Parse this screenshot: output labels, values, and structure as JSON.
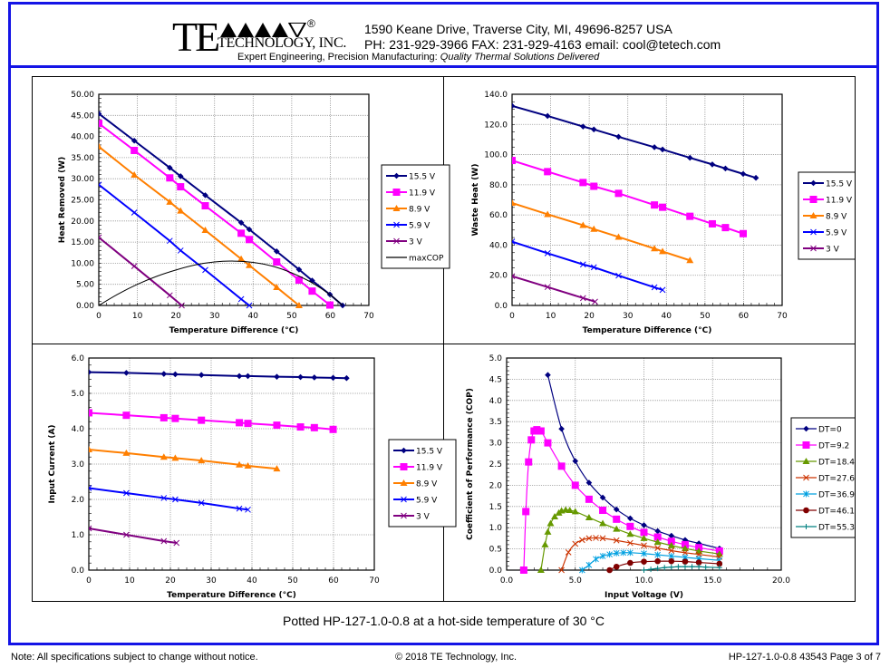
{
  "header": {
    "logo_te": "TE",
    "logo_reg": "®",
    "logo_tech": "TECHNOLOGY, INC.",
    "address_line": "1590 Keane Drive, Traverse City, MI, 49696-8257 USA",
    "contact_line": "PH: 231-929-3966  FAX: 231-929-4163  email: cool@tetech.com",
    "tagline_plain": "Expert Engineering, Precision Manufacturing:",
    "tagline_italic": "Quality Thermal Solutions Delivered"
  },
  "caption": "Potted HP-127-1.0-0.8 at a hot-side temperature of 30 °C",
  "footer": {
    "note": "Note: All specifications subject to change without notice.",
    "copyright": "© 2018 TE Technology, Inc.",
    "page": "HP-127-1.0-0.8 43543 Page 3 of 7"
  },
  "colors": {
    "border": "#1414e6",
    "v15_5": "#000080",
    "v11_9": "#ff00ff",
    "v8_9": "#ff7f00",
    "v5_9": "#0000ff",
    "v3": "#800080",
    "maxcop": "#000000",
    "dt0": "#000080",
    "dt9_2": "#ff00ff",
    "dt18_4": "#669900",
    "dt27_6": "#cc3300",
    "dt36_9": "#00a0e0",
    "dt46_1": "#800000",
    "dt55_3": "#008080"
  },
  "chart_data": [
    {
      "id": "heat-removed",
      "type": "line",
      "xlabel": "Temperature Difference (°C)",
      "ylabel": "Heat Removed (W)",
      "xlim": [
        0,
        70
      ],
      "ylim": [
        0,
        50
      ],
      "xticks": [
        "0",
        "10",
        "20",
        "30",
        "40",
        "50",
        "60",
        "70"
      ],
      "yticks": [
        "0.00",
        "5.00",
        "10.00",
        "15.00",
        "20.00",
        "25.00",
        "30.00",
        "35.00",
        "40.00",
        "45.00",
        "50.00"
      ],
      "grid": true,
      "legend": "right",
      "series": [
        {
          "name": "15.5 V",
          "color": "#000080",
          "marker": "diamond",
          "x": [
            0,
            9.2,
            18.4,
            21.2,
            27.6,
            36.9,
            39.0,
            46.1,
            51.9,
            55.3,
            59.9,
            63.2
          ],
          "y": [
            45.4,
            39.0,
            32.6,
            30.6,
            26.1,
            19.6,
            18.0,
            12.8,
            8.5,
            5.9,
            2.6,
            0
          ]
        },
        {
          "name": "11.9 V",
          "color": "#ff00ff",
          "marker": "square",
          "x": [
            0,
            9.2,
            18.4,
            21.2,
            27.6,
            36.9,
            39.0,
            46.1,
            51.9,
            55.3,
            59.9
          ],
          "y": [
            43.1,
            36.7,
            30.2,
            28.1,
            23.6,
            17.1,
            15.6,
            10.3,
            6.0,
            3.4,
            0.1
          ]
        },
        {
          "name": "8.9 V",
          "color": "#ff7f00",
          "marker": "triangle",
          "x": [
            0,
            9.2,
            18.4,
            21.2,
            27.6,
            36.9,
            39.0,
            46.1,
            51.9
          ],
          "y": [
            37.6,
            30.9,
            24.5,
            22.4,
            17.8,
            11.0,
            9.5,
            4.3,
            0
          ]
        },
        {
          "name": "5.9 V",
          "color": "#0000ff",
          "marker": "x",
          "x": [
            0,
            9.2,
            18.4,
            21.2,
            27.6,
            36.9,
            39.0
          ],
          "y": [
            28.6,
            22.0,
            15.3,
            13.0,
            8.4,
            1.5,
            0
          ]
        },
        {
          "name": "3 V",
          "color": "#800080",
          "marker": "x",
          "x": [
            0,
            9.2,
            18.4,
            21.5
          ],
          "y": [
            16.1,
            9.3,
            2.4,
            0
          ]
        },
        {
          "name": "maxCOP",
          "color": "#000000",
          "marker": "none",
          "smooth": true,
          "x": [
            0,
            5,
            10,
            15,
            20,
            25,
            30,
            35,
            40,
            45,
            50,
            55,
            60,
            63.2
          ],
          "y": [
            0,
            2.7,
            5.0,
            6.9,
            8.4,
            9.6,
            10.3,
            10.5,
            10.2,
            9.3,
            7.7,
            5.5,
            2.5,
            0
          ]
        }
      ]
    },
    {
      "id": "waste-heat",
      "type": "line",
      "xlabel": "Temperature Difference (°C)",
      "ylabel": "Waste Heat (W)",
      "xlim": [
        0,
        70
      ],
      "ylim": [
        0,
        140
      ],
      "xticks": [
        "0",
        "10",
        "20",
        "30",
        "40",
        "50",
        "60",
        "70"
      ],
      "yticks": [
        "0.0",
        "20.0",
        "40.0",
        "60.0",
        "80.0",
        "100.0",
        "120.0",
        "140.0"
      ],
      "grid": true,
      "legend": "right",
      "series": [
        {
          "name": "15.5 V",
          "color": "#000080",
          "marker": "diamond",
          "x": [
            0,
            9.2,
            18.4,
            21.2,
            27.6,
            36.9,
            39.0,
            46.1,
            51.9,
            55.3,
            59.9,
            63.2
          ],
          "y": [
            132.3,
            125.6,
            118.6,
            116.7,
            111.8,
            104.9,
            103.4,
            97.9,
            93.5,
            90.8,
            87.2,
            84.6
          ]
        },
        {
          "name": "11.9 V",
          "color": "#ff00ff",
          "marker": "square",
          "x": [
            0,
            9.2,
            18.4,
            21.2,
            27.6,
            36.9,
            39.0,
            46.1,
            51.9,
            55.3,
            59.9
          ],
          "y": [
            96.1,
            88.7,
            81.5,
            79.0,
            74.3,
            66.6,
            65.1,
            59.1,
            54.1,
            51.6,
            47.6
          ]
        },
        {
          "name": "8.9 V",
          "color": "#ff7f00",
          "marker": "triangle",
          "x": [
            0,
            9.2,
            18.4,
            21.2,
            27.6,
            36.9,
            39.0,
            46.1
          ],
          "y": [
            67.9,
            60.4,
            53.2,
            50.6,
            45.4,
            37.7,
            35.8,
            29.9
          ]
        },
        {
          "name": "5.9 V",
          "color": "#0000ff",
          "marker": "x",
          "x": [
            0,
            9.2,
            18.4,
            21.2,
            27.6,
            36.9,
            39.0
          ],
          "y": [
            42.3,
            34.6,
            27.2,
            25.3,
            19.8,
            12.0,
            10.3
          ]
        },
        {
          "name": "3 V",
          "color": "#800080",
          "marker": "x",
          "x": [
            0,
            9.2,
            18.4,
            21.5
          ],
          "y": [
            19.4,
            12.2,
            4.9,
            2.5
          ]
        }
      ]
    },
    {
      "id": "input-current",
      "type": "line",
      "xlabel": "Temperature Difference (°C)",
      "ylabel": "Input Current (A)",
      "xlim": [
        0,
        70
      ],
      "ylim": [
        0,
        6
      ],
      "xticks": [
        "0",
        "10",
        "20",
        "30",
        "40",
        "50",
        "60",
        "70"
      ],
      "yticks": [
        "0.0",
        "1.0",
        "2.0",
        "3.0",
        "4.0",
        "5.0",
        "6.0"
      ],
      "grid": true,
      "legend": "right",
      "series": [
        {
          "name": "15.5 V",
          "color": "#000080",
          "marker": "diamond",
          "x": [
            0,
            9.2,
            18.4,
            21.2,
            27.6,
            36.9,
            39.0,
            46.1,
            51.9,
            55.3,
            59.9,
            63.2
          ],
          "y": [
            5.6,
            5.58,
            5.55,
            5.54,
            5.52,
            5.49,
            5.49,
            5.47,
            5.46,
            5.45,
            5.44,
            5.43
          ]
        },
        {
          "name": "11.9 V",
          "color": "#ff00ff",
          "marker": "square",
          "x": [
            0,
            9.2,
            18.4,
            21.2,
            27.6,
            36.9,
            39.0,
            46.1,
            51.9,
            55.3,
            59.9
          ],
          "y": [
            4.45,
            4.38,
            4.31,
            4.29,
            4.24,
            4.17,
            4.15,
            4.1,
            4.05,
            4.03,
            3.98
          ]
        },
        {
          "name": "8.9 V",
          "color": "#ff7f00",
          "marker": "triangle",
          "x": [
            0,
            9.2,
            18.4,
            21.2,
            27.6,
            36.9,
            39.0,
            46.1
          ],
          "y": [
            3.41,
            3.31,
            3.2,
            3.17,
            3.1,
            2.98,
            2.95,
            2.87
          ]
        },
        {
          "name": "5.9 V",
          "color": "#0000ff",
          "marker": "x",
          "x": [
            0,
            9.2,
            18.4,
            21.2,
            27.6,
            36.9,
            39.0
          ],
          "y": [
            2.32,
            2.18,
            2.04,
            2.0,
            1.9,
            1.74,
            1.71
          ]
        },
        {
          "name": "3 V",
          "color": "#800080",
          "marker": "x",
          "x": [
            0,
            9.2,
            18.4,
            21.5
          ],
          "y": [
            1.18,
            1.0,
            0.82,
            0.77
          ]
        }
      ]
    },
    {
      "id": "cop",
      "type": "line",
      "xlabel": "Input Voltage (V)",
      "ylabel": "Coefficient of Performance (COP)",
      "xlim": [
        0,
        20
      ],
      "ylim": [
        0,
        5
      ],
      "xticks": [
        "0.0",
        "5.0",
        "10.0",
        "15.0",
        "20.0"
      ],
      "yticks": [
        "0.0",
        "0.5",
        "1.0",
        "1.5",
        "2.0",
        "2.5",
        "3.0",
        "3.5",
        "4.0",
        "4.5",
        "5.0"
      ],
      "grid": true,
      "legend": "right",
      "series": [
        {
          "name": "DT=0",
          "color": "#000080",
          "marker": "diamond",
          "x": [
            3.0,
            4.0,
            5.0,
            6.0,
            7.0,
            8.0,
            9.0,
            10.0,
            11.0,
            12.0,
            13.0,
            14.0,
            15.5
          ],
          "y": [
            4.6,
            3.33,
            2.57,
            2.06,
            1.71,
            1.43,
            1.22,
            1.06,
            0.92,
            0.81,
            0.71,
            0.63,
            0.51
          ]
        },
        {
          "name": "DT=9.2",
          "color": "#ff00ff",
          "marker": "square",
          "x": [
            1.25,
            1.4,
            1.6,
            1.8,
            2.0,
            2.2,
            2.5,
            3.0,
            4.0,
            5.0,
            6.0,
            7.0,
            8.0,
            9.0,
            10.0,
            11.0,
            12.0,
            13.0,
            14.0,
            15.5
          ],
          "y": [
            0,
            1.38,
            2.55,
            3.07,
            3.28,
            3.31,
            3.28,
            3.0,
            2.45,
            2.0,
            1.67,
            1.41,
            1.2,
            1.03,
            0.89,
            0.78,
            0.68,
            0.6,
            0.53,
            0.45
          ]
        },
        {
          "name": "DT=18.4",
          "color": "#669900",
          "marker": "triangle",
          "x": [
            2.5,
            2.8,
            3.0,
            3.2,
            3.5,
            3.8,
            4.0,
            4.3,
            4.6,
            5.0,
            6.0,
            7.0,
            8.0,
            9.0,
            10.0,
            11.0,
            12.0,
            13.0,
            14.0,
            15.5
          ],
          "y": [
            0,
            0.6,
            0.9,
            1.1,
            1.26,
            1.35,
            1.4,
            1.42,
            1.41,
            1.38,
            1.24,
            1.1,
            0.97,
            0.85,
            0.75,
            0.66,
            0.58,
            0.51,
            0.45,
            0.38
          ]
        },
        {
          "name": "DT=27.6",
          "color": "#cc3300",
          "marker": "x",
          "x": [
            4.0,
            4.5,
            5.0,
            5.5,
            6.0,
            6.5,
            7.0,
            8.0,
            9.0,
            10.0,
            11.0,
            12.0,
            13.0,
            14.0,
            15.5
          ],
          "y": [
            0,
            0.42,
            0.62,
            0.71,
            0.75,
            0.76,
            0.75,
            0.7,
            0.64,
            0.58,
            0.52,
            0.46,
            0.41,
            0.37,
            0.31
          ]
        },
        {
          "name": "DT=36.9",
          "color": "#00a0e0",
          "marker": "asterisk",
          "x": [
            5.5,
            6.0,
            6.5,
            7.0,
            7.5,
            8.0,
            8.5,
            9.0,
            10.0,
            11.0,
            12.0,
            13.0,
            14.0,
            15.5
          ],
          "y": [
            0,
            0.12,
            0.26,
            0.33,
            0.37,
            0.4,
            0.41,
            0.41,
            0.39,
            0.36,
            0.33,
            0.3,
            0.27,
            0.23
          ]
        },
        {
          "name": "DT=46.1",
          "color": "#800000",
          "marker": "circle",
          "x": [
            7.5,
            8.0,
            9.0,
            10.0,
            11.0,
            12.0,
            13.0,
            14.0,
            15.5
          ],
          "y": [
            0,
            0.08,
            0.17,
            0.2,
            0.21,
            0.21,
            0.2,
            0.18,
            0.15
          ]
        },
        {
          "name": "DT=55.3",
          "color": "#008080",
          "marker": "plus",
          "x": [
            10.0,
            10.5,
            11.0,
            11.5,
            12.0,
            12.5,
            13.0,
            13.5,
            14.0,
            14.5,
            15.5
          ],
          "y": [
            0,
            0.02,
            0.04,
            0.06,
            0.07,
            0.08,
            0.08,
            0.08,
            0.08,
            0.07,
            0.06
          ]
        }
      ]
    }
  ]
}
